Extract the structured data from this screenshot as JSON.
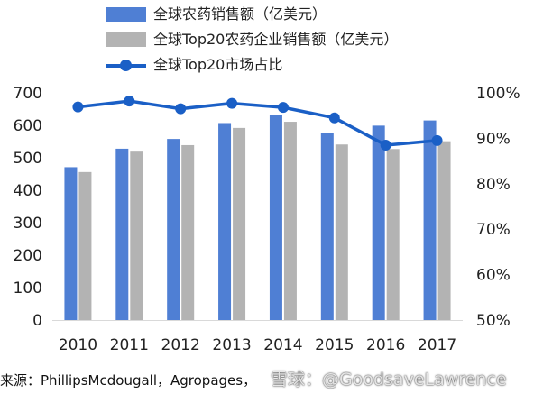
{
  "chart_data": {
    "type": "bar+line",
    "categories": [
      "2010",
      "2011",
      "2012",
      "2013",
      "2014",
      "2015",
      "2016",
      "2017"
    ],
    "series": [
      {
        "name": "全球农药销售额（亿美元）",
        "type": "bar",
        "axis": "left",
        "color": "#4f7fd4",
        "values": [
          471,
          528,
          558,
          607,
          632,
          575,
          599,
          615
        ]
      },
      {
        "name": "全球Top20农药企业销售额（亿美元）",
        "type": "bar",
        "axis": "left",
        "color": "#b3b3b3",
        "values": [
          456,
          519,
          539,
          592,
          611,
          541,
          527,
          551
        ]
      },
      {
        "name": "全球Top20市场占比",
        "type": "line",
        "axis": "right",
        "color": "#1a5fc6",
        "values": [
          96.9,
          98.2,
          96.5,
          97.7,
          96.8,
          94.5,
          88.5,
          89.5
        ]
      }
    ],
    "y_left": {
      "ylim": [
        0,
        700
      ],
      "ticks": [
        "0",
        "100",
        "200",
        "300",
        "400",
        "500",
        "600",
        "700"
      ]
    },
    "y_right": {
      "ylim": [
        50,
        100
      ],
      "ticks": [
        "50%",
        "60%",
        "70%",
        "80%",
        "90%",
        "100%"
      ]
    },
    "grid": false,
    "legend_position": "top"
  },
  "source_text": "来源：PhillipsMcdougall，Agropages，",
  "watermark": "雪球：@GoodsaveLawrence"
}
